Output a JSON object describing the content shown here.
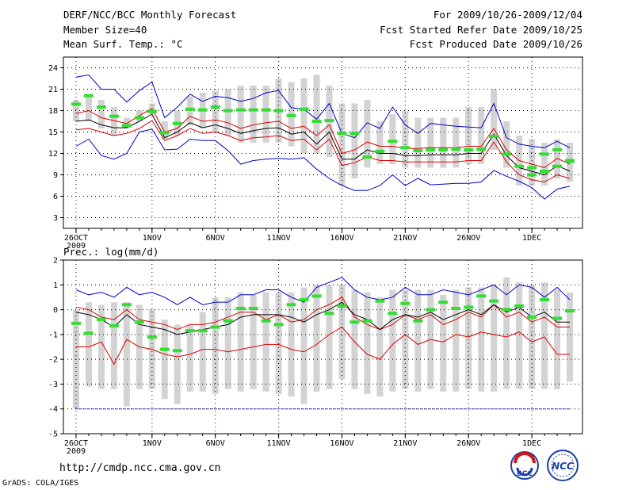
{
  "header": {
    "title": "DERF/NCC/BCC Monthly Forecast",
    "member_size": "Member Size=40",
    "variable": "Mean Surf. Temp.: °C",
    "forecast_range": "For 2009/10/26-2009/12/04",
    "started_refer": "Fcst Started Refer Date 2009/10/25",
    "produced": "Fcst Produced Date 2009/10/26"
  },
  "footer": {
    "url": "http://cmdp.ncc.cma.gov.cn",
    "credit": "GrADS: COLA/IGES",
    "logo_bcc": "BCC",
    "logo_ncc": "NCC"
  },
  "colors": {
    "box": "#d3d3d3",
    "mean_obs": "#33dd33",
    "outer": "#0000cc",
    "inner": "#dd0000",
    "median": "#000000",
    "grid": "#000000"
  },
  "chart_data": [
    {
      "type": "box",
      "title": "Mean Surf. Temp.: °C",
      "ylim": [
        1.5,
        25.5
      ],
      "yticks": [
        3,
        6,
        9,
        12,
        15,
        18,
        21,
        24
      ],
      "x_tick_indices": [
        0,
        6,
        11,
        16,
        21,
        26,
        31,
        36
      ],
      "x_tick_labels": [
        "26OCT",
        "1NOV",
        "6NOV",
        "11NOV",
        "16NOV",
        "21NOV",
        "26NOV",
        "1DEC"
      ],
      "x_year_label": "2009",
      "days": 40,
      "outer_high": [
        22.7,
        23.0,
        21.0,
        21.0,
        19.2,
        20.8,
        22.0,
        17.0,
        18.5,
        20.3,
        19.3,
        20.0,
        19.8,
        19.3,
        19.7,
        20.5,
        20.8,
        18.4,
        18.2,
        16.8,
        19.0,
        14.8,
        14.2,
        16.3,
        15.5,
        18.5,
        16.0,
        14.8,
        16.2,
        16.0,
        15.8,
        15.7,
        15.6,
        19.0,
        14.2,
        13.3,
        13.0,
        12.8,
        13.7,
        12.8
      ],
      "inner_high": [
        17.6,
        18.0,
        17.0,
        16.6,
        16.2,
        17.3,
        18.3,
        15.0,
        15.5,
        17.2,
        16.5,
        16.7,
        16.3,
        15.5,
        16.0,
        16.3,
        16.5,
        15.5,
        15.8,
        14.5,
        16.0,
        12.0,
        12.5,
        13.6,
        13.0,
        13.0,
        12.7,
        12.7,
        12.8,
        12.8,
        12.8,
        13.0,
        13.0,
        15.5,
        12.5,
        11.0,
        10.5,
        10.0,
        11.3,
        10.5
      ],
      "median": [
        16.5,
        16.7,
        16.0,
        15.6,
        15.6,
        16.5,
        17.5,
        14.2,
        15.0,
        16.3,
        15.6,
        16.0,
        15.5,
        14.8,
        15.2,
        15.5,
        15.6,
        14.7,
        15.0,
        13.3,
        15.0,
        11.2,
        11.2,
        12.5,
        12.0,
        12.0,
        11.7,
        11.7,
        11.8,
        11.8,
        11.8,
        12.0,
        12.0,
        14.7,
        11.7,
        10.0,
        9.5,
        9.0,
        10.3,
        9.5
      ],
      "inner_low": [
        15.3,
        15.5,
        15.0,
        14.5,
        14.8,
        15.5,
        16.6,
        13.8,
        14.5,
        15.5,
        14.8,
        15.0,
        14.5,
        13.8,
        14.2,
        14.3,
        14.5,
        13.8,
        14.0,
        12.5,
        14.0,
        10.3,
        10.7,
        11.5,
        11.0,
        11.0,
        10.8,
        10.8,
        10.8,
        10.8,
        10.8,
        11.0,
        11.0,
        13.6,
        10.8,
        9.0,
        8.3,
        8.0,
        9.0,
        8.5
      ],
      "outer_low": [
        13.0,
        14.0,
        11.7,
        11.2,
        12.0,
        15.0,
        15.4,
        12.5,
        12.6,
        14.0,
        13.8,
        13.8,
        12.4,
        10.5,
        11.0,
        11.2,
        11.3,
        11.2,
        11.4,
        9.8,
        8.5,
        7.5,
        6.8,
        6.8,
        7.5,
        9.0,
        7.5,
        8.5,
        7.6,
        7.7,
        7.8,
        7.8,
        8.0,
        9.6,
        8.8,
        8.1,
        7.2,
        5.6,
        7.0,
        7.4
      ],
      "box_top": [
        19.5,
        20.0,
        19.5,
        18.5,
        17.0,
        18.0,
        19.0,
        16.5,
        18.0,
        20.0,
        20.5,
        20.8,
        21.0,
        21.5,
        21.5,
        21.5,
        22.5,
        22.0,
        22.5,
        23.0,
        21.5,
        19.0,
        19.0,
        19.5,
        16.5,
        17.5,
        18.0,
        17.0,
        17.0,
        17.0,
        17.0,
        18.5,
        18.5,
        21.0,
        16.5,
        14.5,
        14.0,
        13.5,
        14.0,
        13.5
      ],
      "box_bottom": [
        16.5,
        16.5,
        15.5,
        14.5,
        15.5,
        16.5,
        17.5,
        14.0,
        14.5,
        16.0,
        15.5,
        15.0,
        14.5,
        13.5,
        13.5,
        13.5,
        13.5,
        13.0,
        12.0,
        12.0,
        11.5,
        7.5,
        8.5,
        10.0,
        10.5,
        10.5,
        10.0,
        10.0,
        10.0,
        10.0,
        10.0,
        10.5,
        10.5,
        12.5,
        10.0,
        7.5,
        7.5,
        7.5,
        8.5,
        8.0
      ],
      "marker": [
        18.9,
        20.1,
        18.5,
        17.2,
        15.9,
        17.0,
        17.9,
        14.9,
        16.2,
        18.2,
        18.1,
        18.5,
        18.0,
        18.1,
        18.1,
        18.1,
        18.0,
        17.3,
        18.2,
        16.5,
        16.6,
        14.8,
        14.8,
        11.5,
        12.3,
        13.7,
        12.8,
        12.4,
        12.5,
        12.5,
        12.6,
        12.5,
        12.6,
        14.4,
        11.9,
        10.2,
        9.0,
        11.9,
        12.5,
        10.9
      ],
      "marker_alt": [
        null,
        null,
        null,
        null,
        null,
        null,
        null,
        null,
        null,
        null,
        null,
        null,
        null,
        null,
        null,
        null,
        null,
        null,
        null,
        null,
        null,
        null,
        null,
        null,
        null,
        null,
        null,
        null,
        null,
        null,
        null,
        null,
        null,
        null,
        null,
        null,
        10.0,
        9.5,
        10.2,
        11.0
      ]
    },
    {
      "type": "box",
      "title": "Prec.: log(mm/d)",
      "ylim": [
        -5,
        2
      ],
      "yticks": [
        -5,
        -4,
        -3,
        -2,
        -1,
        0,
        1,
        2
      ],
      "x_tick_indices": [
        0,
        6,
        11,
        16,
        21,
        26,
        31,
        36
      ],
      "x_tick_labels": [
        "26OCT",
        "1NOV",
        "6NOV",
        "11NOV",
        "16NOV",
        "21NOV",
        "26NOV",
        "1DEC"
      ],
      "x_year_label": "2009",
      "days": 40,
      "floor_value": -4,
      "outer_high": [
        0.8,
        0.6,
        0.7,
        0.5,
        0.9,
        0.6,
        0.7,
        0.5,
        0.2,
        0.5,
        0.2,
        0.3,
        0.3,
        0.6,
        0.6,
        0.8,
        0.8,
        0.5,
        0.3,
        0.9,
        1.1,
        1.3,
        0.8,
        0.5,
        0.4,
        0.5,
        0.9,
        0.6,
        0.6,
        0.8,
        0.7,
        0.6,
        0.8,
        1.0,
        0.6,
        1.0,
        0.9,
        0.5,
        0.9,
        0.4
      ],
      "inner_high": [
        0.1,
        0.0,
        -0.3,
        -0.4,
        0.0,
        -0.4,
        -0.5,
        -0.6,
        -0.8,
        -0.6,
        -0.6,
        -0.5,
        -0.3,
        -0.1,
        -0.1,
        -0.4,
        -0.2,
        -0.5,
        -0.4,
        0.0,
        0.2,
        0.5,
        -0.3,
        -0.6,
        -0.8,
        -0.6,
        -0.2,
        -0.4,
        -0.2,
        -0.6,
        -0.4,
        -0.1,
        -0.3,
        0.2,
        -0.3,
        -0.1,
        -0.5,
        -0.3,
        -0.7,
        -0.7
      ],
      "median": [
        -0.1,
        -0.2,
        -0.4,
        -0.7,
        -0.2,
        -0.6,
        -0.7,
        -0.8,
        -1.0,
        -0.9,
        -0.8,
        -0.7,
        -0.6,
        -0.3,
        -0.2,
        -0.2,
        -0.2,
        -0.3,
        -0.5,
        -0.2,
        0.0,
        0.3,
        -0.2,
        -0.4,
        -0.8,
        -0.4,
        -0.2,
        -0.3,
        -0.1,
        -0.4,
        -0.2,
        0.0,
        -0.2,
        0.2,
        -0.1,
        0.1,
        -0.3,
        -0.1,
        -0.5,
        -0.5
      ],
      "inner_low": [
        -1.5,
        -1.5,
        -1.3,
        -2.2,
        -1.2,
        -1.5,
        -1.6,
        -1.8,
        -1.9,
        -1.8,
        -1.6,
        -1.6,
        -1.7,
        -1.6,
        -1.5,
        -1.4,
        -1.4,
        -1.6,
        -1.7,
        -1.4,
        -1.0,
        -0.7,
        -1.3,
        -1.8,
        -2.0,
        -1.4,
        -1.0,
        -1.4,
        -1.2,
        -1.3,
        -1.0,
        -1.1,
        -0.9,
        -1.0,
        -1.1,
        -0.9,
        -1.3,
        -1.1,
        -1.8,
        -1.8
      ],
      "outer_low": [
        -4,
        -4,
        -4,
        -4,
        -4,
        -4,
        -4,
        -4,
        -4,
        -4,
        -4,
        -4,
        -4,
        -4,
        -4,
        -4,
        -4,
        -4,
        -4,
        -4,
        -4,
        -4,
        -4,
        -4,
        -4,
        -4,
        -4,
        -4,
        -4,
        -4,
        -4,
        -4,
        -4,
        -4,
        -4,
        -4,
        -4,
        -4,
        -4,
        -4
      ],
      "box_top": [
        0.0,
        0.3,
        0.2,
        0.3,
        0.3,
        0.2,
        0.0,
        -0.4,
        -0.6,
        -0.6,
        -0.1,
        0.5,
        0.5,
        0.7,
        0.6,
        0.7,
        0.7,
        0.7,
        0.9,
        1.0,
        1.0,
        1.0,
        0.8,
        0.7,
        0.5,
        0.8,
        0.8,
        0.8,
        0.8,
        0.6,
        0.8,
        0.9,
        0.9,
        1.0,
        1.3,
        1.1,
        1.0,
        1.1,
        0.8,
        0.7
      ],
      "box_bottom": [
        -4,
        -3.1,
        -3.2,
        -3.2,
        -3.9,
        -3.2,
        -3.2,
        -3.6,
        -3.8,
        -3.3,
        -3.3,
        -3.4,
        -3.2,
        -3.3,
        -3.2,
        -3.3,
        -3.4,
        -3.5,
        -3.8,
        -3.3,
        -3.2,
        -2.8,
        -3.2,
        -3.4,
        -3.5,
        -3.3,
        -3.2,
        -3.3,
        -3.2,
        -3.3,
        -3.3,
        -3.2,
        -3.3,
        -3.3,
        -3.2,
        -3.2,
        -3.2,
        -3.2,
        -3.2,
        -2.9
      ],
      "marker": [
        -0.55,
        -0.95,
        -0.4,
        -0.65,
        0.2,
        -0.5,
        -1.1,
        -1.6,
        -1.65,
        -0.85,
        -0.85,
        -0.7,
        -0.45,
        0.05,
        0.05,
        -0.45,
        -0.6,
        0.2,
        0.4,
        0.55,
        -0.15,
        0.15,
        -0.5,
        -0.45,
        0.35,
        -0.15,
        0.25,
        -0.45,
        0.0,
        0.3,
        0.05,
        0.1,
        0.55,
        0.35,
        0.0,
        0.15,
        -0.3,
        0.4,
        -0.35,
        -0.05
      ],
      "marker_alt": []
    }
  ]
}
